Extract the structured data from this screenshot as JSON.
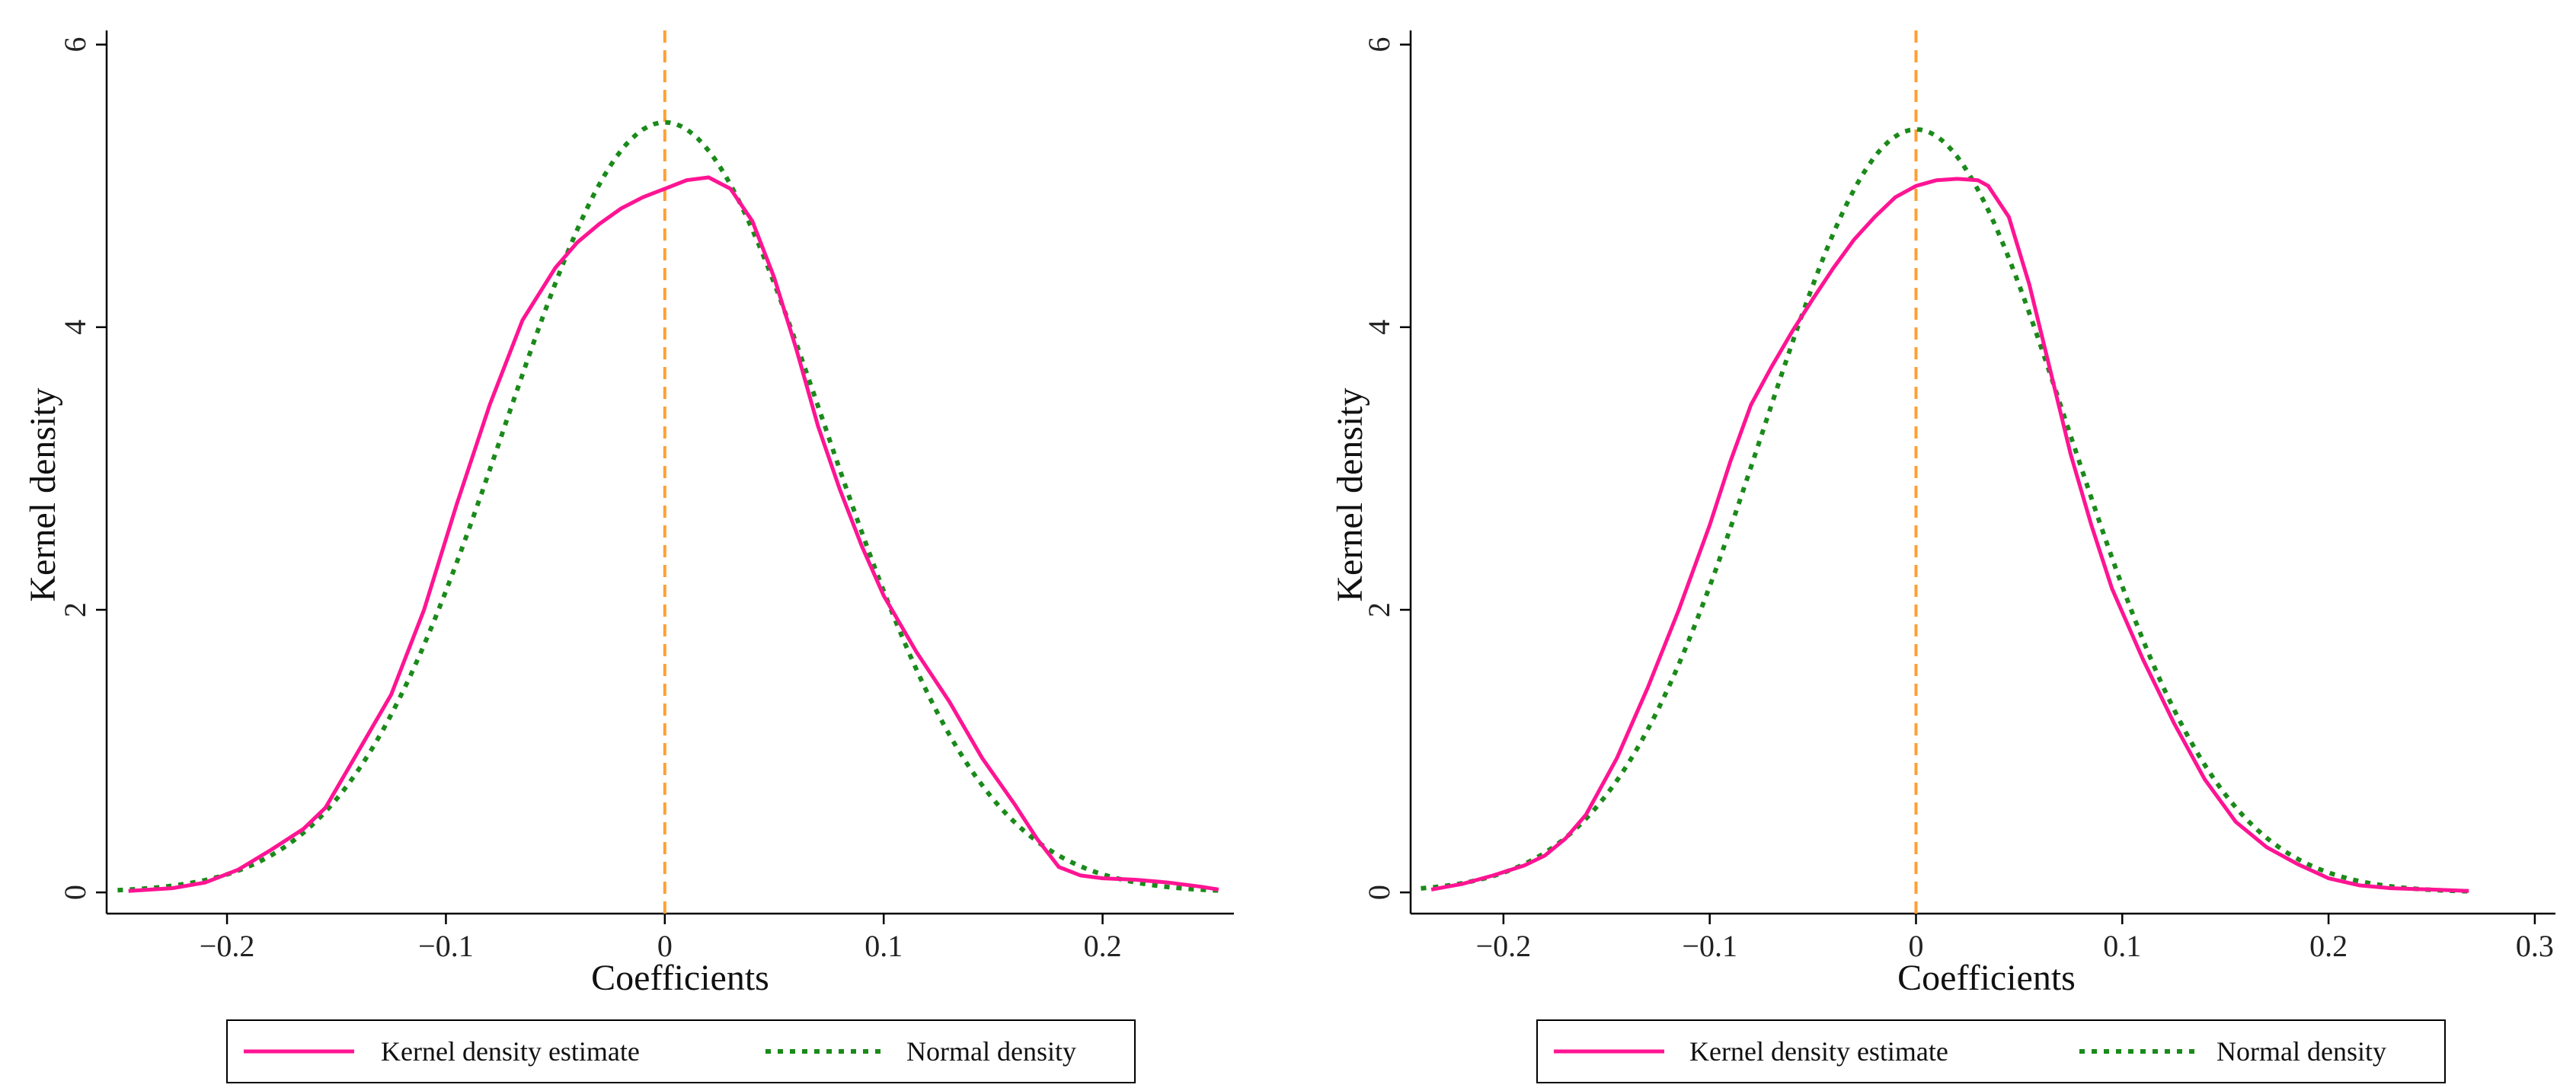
{
  "colors": {
    "kernel": "#ff1493",
    "normal": "#1a8a1a",
    "refline": "#ffa033",
    "axis": "#000000"
  },
  "chart_data": [
    {
      "type": "line",
      "xlabel": "Coefficients",
      "ylabel": "Kernel density",
      "xlim": [
        -0.255,
        0.26
      ],
      "ylim": [
        -0.15,
        6.1
      ],
      "xticks": [
        -0.2,
        -0.1,
        0,
        0.1,
        0.2
      ],
      "xtick_labels": [
        "−0.2",
        "−0.1",
        "0",
        "0.1",
        "0.2"
      ],
      "yticks": [
        0,
        2,
        4,
        6
      ],
      "ytick_labels": [
        "0",
        "2",
        "4",
        "6"
      ],
      "reference_line_x": 0,
      "legend": [
        "Kernel density estimate",
        "Normal density"
      ],
      "series": [
        {
          "name": "Kernel density estimate",
          "style": "solid",
          "x": [
            -0.245,
            -0.225,
            -0.21,
            -0.195,
            -0.18,
            -0.165,
            -0.155,
            -0.14,
            -0.125,
            -0.11,
            -0.095,
            -0.08,
            -0.065,
            -0.05,
            -0.04,
            -0.03,
            -0.02,
            -0.01,
            0,
            0.01,
            0.02,
            0.03,
            0.04,
            0.05,
            0.06,
            0.07,
            0.08,
            0.09,
            0.1,
            0.115,
            0.13,
            0.145,
            0.16,
            0.17,
            0.18,
            0.19,
            0.2,
            0.215,
            0.23,
            0.245,
            0.253
          ],
          "y": [
            0.01,
            0.03,
            0.07,
            0.16,
            0.3,
            0.45,
            0.6,
            1.0,
            1.4,
            2.0,
            2.75,
            3.45,
            4.05,
            4.42,
            4.6,
            4.73,
            4.84,
            4.92,
            4.98,
            5.04,
            5.06,
            4.98,
            4.75,
            4.35,
            3.85,
            3.3,
            2.85,
            2.45,
            2.1,
            1.7,
            1.35,
            0.95,
            0.62,
            0.38,
            0.18,
            0.12,
            0.1,
            0.09,
            0.07,
            0.04,
            0.02
          ]
        },
        {
          "name": "Normal density",
          "style": "dotted",
          "mean": 0.0,
          "sd": 0.073,
          "peak": 5.45,
          "range": [
            -0.25,
            0.255
          ]
        }
      ]
    },
    {
      "type": "line",
      "xlabel": "Coefficients",
      "ylabel": "Kernel density",
      "xlim": [
        -0.245,
        0.31
      ],
      "ylim": [
        -0.15,
        6.1
      ],
      "xticks": [
        -0.2,
        -0.1,
        0,
        0.1,
        0.2,
        0.3
      ],
      "xtick_labels": [
        "−0.2",
        "−0.1",
        "0",
        "0.1",
        "0.2",
        "0.3"
      ],
      "yticks": [
        0,
        2,
        4,
        6
      ],
      "ytick_labels": [
        "0",
        "2",
        "4",
        "6"
      ],
      "reference_line_x": 0,
      "legend": [
        "Kernel density estimate",
        "Normal density"
      ],
      "series": [
        {
          "name": "Kernel density estimate",
          "style": "solid",
          "x": [
            -0.235,
            -0.22,
            -0.205,
            -0.19,
            -0.18,
            -0.17,
            -0.16,
            -0.145,
            -0.13,
            -0.115,
            -0.1,
            -0.09,
            -0.08,
            -0.07,
            -0.06,
            -0.05,
            -0.04,
            -0.03,
            -0.02,
            -0.01,
            0,
            0.01,
            0.02,
            0.03,
            0.035,
            0.045,
            0.055,
            0.065,
            0.075,
            0.085,
            0.095,
            0.11,
            0.125,
            0.14,
            0.155,
            0.17,
            0.185,
            0.2,
            0.215,
            0.23,
            0.25,
            0.268
          ],
          "y": [
            0.02,
            0.06,
            0.12,
            0.19,
            0.26,
            0.38,
            0.55,
            0.95,
            1.45,
            2.0,
            2.6,
            3.05,
            3.45,
            3.72,
            3.97,
            4.2,
            4.42,
            4.62,
            4.78,
            4.92,
            5.0,
            5.04,
            5.05,
            5.04,
            5.0,
            4.78,
            4.3,
            3.7,
            3.1,
            2.6,
            2.15,
            1.65,
            1.2,
            0.8,
            0.5,
            0.32,
            0.2,
            0.1,
            0.05,
            0.03,
            0.02,
            0.01
          ]
        },
        {
          "name": "Normal density",
          "style": "dotted",
          "mean": 0.0,
          "sd": 0.074,
          "peak": 5.4,
          "range": [
            -0.24,
            0.27
          ]
        }
      ]
    }
  ]
}
